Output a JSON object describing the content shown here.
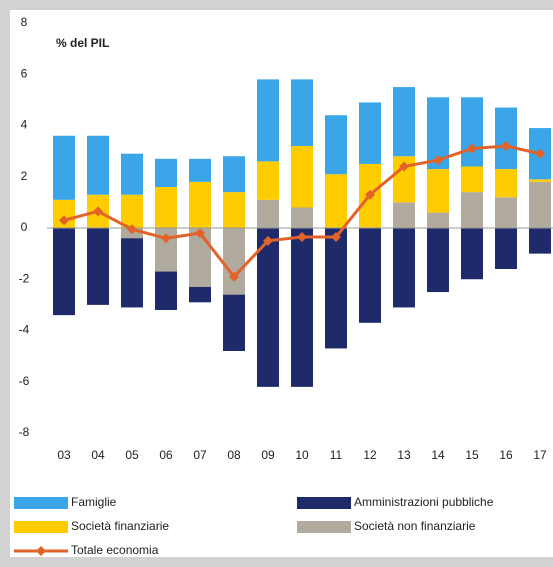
{
  "chart_data": {
    "type": "bar",
    "subtitle": "% del PIL",
    "categories": [
      "03",
      "04",
      "05",
      "06",
      "07",
      "08",
      "09",
      "10",
      "11",
      "12",
      "13",
      "14",
      "15",
      "16",
      "17"
    ],
    "series": [
      {
        "name": "Famiglie",
        "color": "#3aa6e8",
        "values": [
          2.5,
          2.3,
          1.6,
          1.1,
          0.9,
          1.4,
          3.2,
          2.6,
          2.3,
          2.4,
          2.7,
          2.8,
          2.7,
          2.4,
          2.0
        ]
      },
      {
        "name": "Amministrazioni pubbliche",
        "color": "#1f2a6b",
        "values": [
          -3.4,
          -3.0,
          -2.7,
          -1.5,
          -0.6,
          -2.2,
          -6.2,
          -6.2,
          -4.7,
          -3.7,
          -3.1,
          -2.5,
          -2.0,
          -1.6,
          -1.0
        ]
      },
      {
        "name": "Società finanziarie",
        "color": "#ffcc00",
        "values": [
          1.1,
          1.3,
          1.3,
          1.6,
          1.8,
          1.4,
          1.5,
          2.4,
          2.1,
          2.5,
          1.8,
          1.7,
          1.0,
          1.1,
          0.1
        ]
      },
      {
        "name": "Società non finanziarie",
        "color": "#b1aa9f",
        "values": [
          0,
          0,
          -0.4,
          -1.7,
          -2.3,
          -2.6,
          1.1,
          0.8,
          0,
          0,
          1.0,
          0.6,
          1.4,
          1.2,
          1.8
        ]
      },
      {
        "name": "Totale economia",
        "type": "line",
        "color": "#e2632a",
        "values": [
          0.3,
          0.65,
          -0.05,
          -0.4,
          -0.2,
          -1.9,
          -0.5,
          -0.35,
          -0.35,
          1.3,
          2.4,
          2.65,
          3.1,
          3.2,
          2.9
        ]
      }
    ],
    "ylim": [
      -8,
      8
    ],
    "yticks": [
      -8,
      -6,
      -4,
      -2,
      0,
      2,
      4,
      6,
      8
    ]
  }
}
